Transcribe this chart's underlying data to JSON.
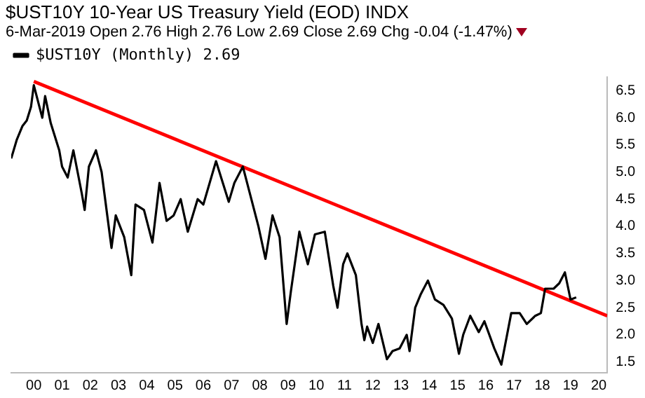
{
  "chart_data": {
    "type": "line",
    "title": "$UST10Y 10-Year US Treasury Yield (EOD) INDX",
    "subtitle": "6-Mar-2019 Open 2.76 High 2.76 Low 2.69 Close 2.69 Chg -0.04 (-1.47%)",
    "series": [
      {
        "name": "$UST10Y (Monthly) 2.69",
        "color": "#000000",
        "x": [
          1999.2,
          1999.4,
          1999.6,
          1999.75,
          1999.9,
          2000.0,
          2000.3,
          2000.4,
          2000.6,
          2000.9,
          2001.0,
          2001.2,
          2001.4,
          2001.7,
          2001.8,
          2001.95,
          2002.2,
          2002.4,
          2002.6,
          2002.75,
          2002.9,
          2003.2,
          2003.45,
          2003.6,
          2003.9,
          2004.2,
          2004.45,
          2004.7,
          2004.95,
          2005.2,
          2005.45,
          2005.8,
          2006.0,
          2006.45,
          2006.9,
          2007.1,
          2007.4,
          2007.7,
          2007.95,
          2008.2,
          2008.45,
          2008.7,
          2008.95,
          2009.1,
          2009.4,
          2009.7,
          2009.95,
          2010.3,
          2010.6,
          2010.75,
          2010.95,
          2011.1,
          2011.4,
          2011.6,
          2011.7,
          2011.8,
          2012.0,
          2012.2,
          2012.5,
          2012.7,
          2012.95,
          2013.2,
          2013.3,
          2013.5,
          2013.7,
          2013.95,
          2014.2,
          2014.5,
          2014.8,
          2015.05,
          2015.2,
          2015.45,
          2015.75,
          2015.95,
          2016.3,
          2016.55,
          2016.9,
          2017.2,
          2017.45,
          2017.75,
          2017.95,
          2018.1,
          2018.4,
          2018.6,
          2018.8,
          2019.0,
          2019.2
        ],
        "values": [
          5.25,
          5.6,
          5.85,
          5.95,
          6.2,
          6.6,
          6.0,
          6.4,
          5.9,
          5.4,
          5.1,
          4.9,
          5.4,
          4.6,
          4.3,
          5.1,
          5.4,
          5.0,
          4.2,
          3.6,
          4.2,
          3.8,
          3.1,
          4.4,
          4.3,
          3.7,
          4.8,
          4.1,
          4.2,
          4.5,
          3.9,
          4.5,
          4.4,
          5.2,
          4.45,
          4.8,
          5.1,
          4.5,
          4.0,
          3.4,
          4.2,
          3.8,
          2.2,
          2.8,
          3.9,
          3.3,
          3.85,
          3.9,
          2.9,
          2.5,
          3.3,
          3.5,
          3.1,
          2.2,
          1.9,
          2.15,
          1.85,
          2.2,
          1.55,
          1.7,
          1.75,
          2.0,
          1.7,
          2.5,
          2.75,
          3.0,
          2.65,
          2.55,
          2.3,
          1.65,
          2.0,
          2.35,
          2.05,
          2.25,
          1.75,
          1.45,
          2.4,
          2.4,
          2.2,
          2.35,
          2.4,
          2.85,
          2.85,
          2.95,
          3.15,
          2.65,
          2.69
        ]
      },
      {
        "color": "#ff0000",
        "x": [
          2000.0,
          2020.3
        ],
        "values": [
          6.67,
          2.35
        ]
      }
    ],
    "xlim": [
      1999.2,
      2020.3
    ],
    "xticks": [
      {
        "value": 2000,
        "label": "00"
      },
      {
        "value": 2001,
        "label": "01"
      },
      {
        "value": 2002,
        "label": "02"
      },
      {
        "value": 2003,
        "label": "03"
      },
      {
        "value": 2004,
        "label": "04"
      },
      {
        "value": 2005,
        "label": "05"
      },
      {
        "value": 2006,
        "label": "06"
      },
      {
        "value": 2007,
        "label": "07"
      },
      {
        "value": 2008,
        "label": "08"
      },
      {
        "value": 2009,
        "label": "09"
      },
      {
        "value": 2010,
        "label": "10"
      },
      {
        "value": 2011,
        "label": "11"
      },
      {
        "value": 2012,
        "label": "12"
      },
      {
        "value": 2013,
        "label": "13"
      },
      {
        "value": 2014,
        "label": "14"
      },
      {
        "value": 2015,
        "label": "15"
      },
      {
        "value": 2016,
        "label": "16"
      },
      {
        "value": 2017,
        "label": "17"
      },
      {
        "value": 2018,
        "label": "18"
      },
      {
        "value": 2019,
        "label": "19"
      },
      {
        "value": 2020,
        "label": "20"
      }
    ],
    "ylim": [
      1.3,
      6.75
    ],
    "yticks": [
      {
        "value": 1.5,
        "label": "1.5"
      },
      {
        "value": 2,
        "label": "2.0"
      },
      {
        "value": 2.5,
        "label": "2.5"
      },
      {
        "value": 3,
        "label": "3.0"
      },
      {
        "value": 3.5,
        "label": "3.5"
      },
      {
        "value": 4,
        "label": "4.0"
      },
      {
        "value": 4.5,
        "label": "4.5"
      },
      {
        "value": 5,
        "label": "5.0"
      },
      {
        "value": 5.5,
        "label": "5.5"
      },
      {
        "value": 6,
        "label": "6.0"
      },
      {
        "value": 6.5,
        "label": "6.5"
      }
    ],
    "grid": false,
    "legend": "top left",
    "marker": "none",
    "line_style": "solid"
  }
}
